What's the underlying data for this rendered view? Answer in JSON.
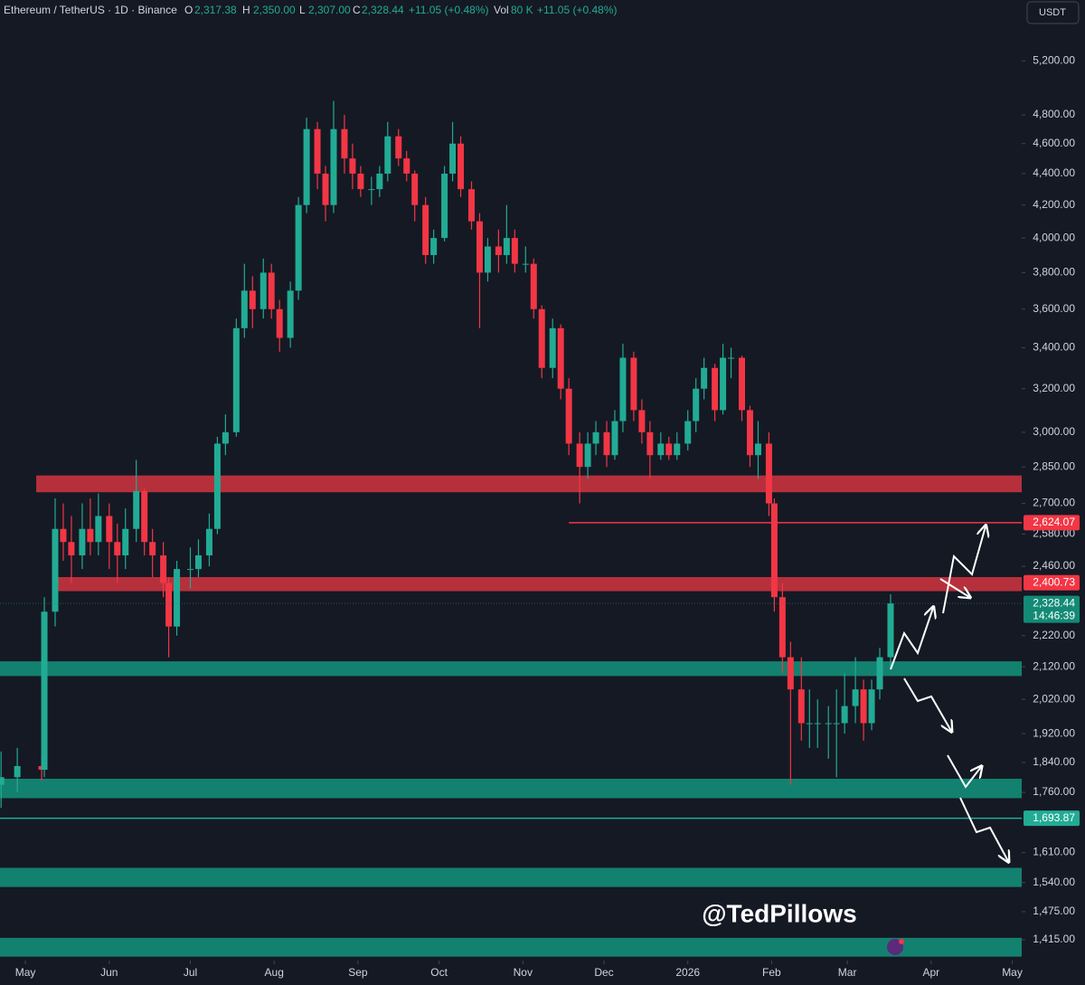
{
  "header": {
    "symbol": "Ethereum / TetherUS · 1D · Binance",
    "o_label": "O",
    "o": "2,317.38",
    "h_label": "H",
    "h": "2,350.00",
    "l_label": "L",
    "l": "2,307.00",
    "c_label": "C",
    "c": "2,328.44",
    "change": "+11.05 (+0.48%)",
    "vol_label": "Vol",
    "vol": "80 K",
    "vol_change": "+11.05 (+0.48%)",
    "currency": "USDT"
  },
  "watermark": "@TedPillows",
  "chart_data": {
    "type": "candlestick",
    "log_scale": true,
    "grid": false,
    "up_color": "#22ab94",
    "down_color": "#f23645",
    "xlim": [
      -9.4,
      368.5
    ],
    "xticks": [
      {
        "value": 0,
        "label": "May"
      },
      {
        "value": 31,
        "label": "Jun"
      },
      {
        "value": 61,
        "label": "Jul"
      },
      {
        "value": 92,
        "label": "Aug"
      },
      {
        "value": 123,
        "label": "Sep"
      },
      {
        "value": 153,
        "label": "Oct"
      },
      {
        "value": 184,
        "label": "Nov"
      },
      {
        "value": 214,
        "label": "Dec"
      },
      {
        "value": 245,
        "label": "2026"
      },
      {
        "value": 276,
        "label": "Feb"
      },
      {
        "value": 304,
        "label": "Mar"
      },
      {
        "value": 335,
        "label": "Apr"
      },
      {
        "value": 365,
        "label": "May"
      }
    ],
    "ylim": [
      1372,
      5690
    ],
    "yticks": [
      {
        "value": 5200,
        "label": "5,200.00"
      },
      {
        "value": 4800,
        "label": "4,800.00"
      },
      {
        "value": 4600,
        "label": "4,600.00"
      },
      {
        "value": 4400,
        "label": "4,400.00"
      },
      {
        "value": 4200,
        "label": "4,200.00"
      },
      {
        "value": 4000,
        "label": "4,000.00"
      },
      {
        "value": 3800,
        "label": "3,800.00"
      },
      {
        "value": 3600,
        "label": "3,600.00"
      },
      {
        "value": 3400,
        "label": "3,400.00"
      },
      {
        "value": 3200,
        "label": "3,200.00"
      },
      {
        "value": 3000,
        "label": "3,000.00"
      },
      {
        "value": 2850,
        "label": "2,850.00"
      },
      {
        "value": 2700,
        "label": "2,700.00"
      },
      {
        "value": 2580,
        "label": "2,580.00"
      },
      {
        "value": 2460,
        "label": "2,460.00"
      },
      {
        "value": 2220,
        "label": "2,220.00"
      },
      {
        "value": 2120,
        "label": "2,120.00"
      },
      {
        "value": 2020,
        "label": "2,020.00"
      },
      {
        "value": 1920,
        "label": "1,920.00"
      },
      {
        "value": 1840,
        "label": "1,840.00"
      },
      {
        "value": 1760,
        "label": "1,760.00"
      },
      {
        "value": 1610,
        "label": "1,610.00"
      },
      {
        "value": 1540,
        "label": "1,540.00"
      },
      {
        "value": 1475,
        "label": "1,475.00"
      },
      {
        "value": 1415,
        "label": "1,415.00"
      }
    ],
    "x": [
      -9,
      -3,
      6,
      7,
      11,
      14,
      17,
      21,
      24,
      27,
      31,
      34,
      37,
      41,
      44,
      47,
      51,
      53,
      56,
      61,
      64,
      68,
      71,
      74,
      78,
      81,
      84,
      88,
      91,
      94,
      98,
      101,
      104,
      108,
      111,
      114,
      118,
      121,
      124,
      128,
      131,
      134,
      138,
      141,
      144,
      148,
      151,
      155,
      158,
      161,
      165,
      168,
      171,
      175,
      178,
      181,
      185,
      188,
      191,
      195,
      198,
      201,
      205,
      208,
      211,
      215,
      218,
      221,
      225,
      228,
      231,
      235,
      238,
      241,
      245,
      248,
      251,
      255,
      258,
      261,
      265,
      268,
      271,
      275,
      277,
      280,
      283,
      287,
      290,
      293,
      297,
      300,
      303,
      307,
      310,
      313,
      316,
      320
    ],
    "ohlc": [
      [
        1780,
        1870,
        1720,
        1800
      ],
      [
        1800,
        1880,
        1760,
        1830
      ],
      [
        1830,
        1860,
        1790,
        1820
      ],
      [
        1820,
        2350,
        1800,
        2300
      ],
      [
        2300,
        2720,
        2250,
        2600
      ],
      [
        2600,
        2700,
        2480,
        2550
      ],
      [
        2550,
        2650,
        2400,
        2500
      ],
      [
        2500,
        2700,
        2450,
        2600
      ],
      [
        2600,
        2720,
        2500,
        2550
      ],
      [
        2550,
        2740,
        2500,
        2650
      ],
      [
        2650,
        2700,
        2450,
        2550
      ],
      [
        2550,
        2620,
        2400,
        2500
      ],
      [
        2500,
        2680,
        2450,
        2600
      ],
      [
        2600,
        2880,
        2550,
        2750
      ],
      [
        2750,
        2760,
        2500,
        2550
      ],
      [
        2550,
        2600,
        2420,
        2500
      ],
      [
        2500,
        2550,
        2350,
        2400
      ],
      [
        2400,
        2420,
        2150,
        2250
      ],
      [
        2250,
        2480,
        2220,
        2450
      ],
      [
        2450,
        2530,
        2380,
        2450
      ],
      [
        2450,
        2560,
        2420,
        2500
      ],
      [
        2500,
        2660,
        2460,
        2600
      ],
      [
        2600,
        2980,
        2580,
        2950
      ],
      [
        2950,
        3080,
        2900,
        3000
      ],
      [
        3000,
        3550,
        2980,
        3500
      ],
      [
        3500,
        3850,
        3450,
        3700
      ],
      [
        3700,
        3780,
        3500,
        3600
      ],
      [
        3600,
        3880,
        3550,
        3800
      ],
      [
        3800,
        3850,
        3550,
        3600
      ],
      [
        3600,
        3650,
        3380,
        3450
      ],
      [
        3450,
        3750,
        3400,
        3700
      ],
      [
        3700,
        4250,
        3650,
        4200
      ],
      [
        4200,
        4780,
        4150,
        4700
      ],
      [
        4700,
        4750,
        4300,
        4400
      ],
      [
        4400,
        4450,
        4100,
        4200
      ],
      [
        4200,
        4900,
        4150,
        4700
      ],
      [
        4700,
        4800,
        4400,
        4500
      ],
      [
        4500,
        4600,
        4300,
        4400
      ],
      [
        4400,
        4450,
        4250,
        4300
      ],
      [
        4300,
        4380,
        4200,
        4300
      ],
      [
        4300,
        4450,
        4250,
        4400
      ],
      [
        4400,
        4750,
        4350,
        4650
      ],
      [
        4650,
        4700,
        4450,
        4500
      ],
      [
        4500,
        4550,
        4350,
        4400
      ],
      [
        4400,
        4420,
        4100,
        4200
      ],
      [
        4200,
        4250,
        3850,
        3900
      ],
      [
        3900,
        4050,
        3850,
        4000
      ],
      [
        4000,
        4450,
        3980,
        4400
      ],
      [
        4400,
        4750,
        4350,
        4600
      ],
      [
        4600,
        4650,
        4250,
        4300
      ],
      [
        4300,
        4350,
        4050,
        4100
      ],
      [
        4100,
        4150,
        3500,
        3800
      ],
      [
        3800,
        4000,
        3750,
        3950
      ],
      [
        3950,
        4050,
        3800,
        3900
      ],
      [
        3900,
        4200,
        3850,
        4000
      ],
      [
        4000,
        4050,
        3800,
        3850
      ],
      [
        3850,
        3950,
        3800,
        3850
      ],
      [
        3850,
        3880,
        3550,
        3600
      ],
      [
        3600,
        3620,
        3250,
        3300
      ],
      [
        3300,
        3550,
        3250,
        3500
      ],
      [
        3500,
        3520,
        3150,
        3200
      ],
      [
        3200,
        3250,
        2900,
        2950
      ],
      [
        2950,
        3000,
        2700,
        2850
      ],
      [
        2850,
        3000,
        2800,
        2950
      ],
      [
        2950,
        3050,
        2900,
        3000
      ],
      [
        3000,
        3050,
        2850,
        2900
      ],
      [
        2900,
        3100,
        2880,
        3050
      ],
      [
        3050,
        3420,
        3000,
        3350
      ],
      [
        3350,
        3380,
        3050,
        3100
      ],
      [
        3100,
        3150,
        2950,
        3000
      ],
      [
        3000,
        3050,
        2800,
        2900
      ],
      [
        2900,
        3000,
        2880,
        2950
      ],
      [
        2950,
        2980,
        2880,
        2900
      ],
      [
        2900,
        3000,
        2880,
        2950
      ],
      [
        2950,
        3100,
        2920,
        3050
      ],
      [
        3050,
        3250,
        3000,
        3200
      ],
      [
        3200,
        3350,
        3150,
        3300
      ],
      [
        3300,
        3320,
        3050,
        3100
      ],
      [
        3100,
        3420,
        3080,
        3350
      ],
      [
        3350,
        3400,
        3250,
        3350
      ],
      [
        3350,
        3360,
        3050,
        3100
      ],
      [
        3100,
        3120,
        2850,
        2900
      ],
      [
        2900,
        3050,
        2800,
        2950
      ],
      [
        2950,
        3000,
        2650,
        2700
      ],
      [
        2700,
        2720,
        2300,
        2350
      ],
      [
        2350,
        2400,
        2100,
        2150
      ],
      [
        2150,
        2200,
        1780,
        2050
      ],
      [
        2050,
        2150,
        1900,
        1950
      ],
      [
        1950,
        2050,
        1880,
        1950
      ],
      [
        1950,
        2020,
        1880,
        1950
      ],
      [
        1950,
        2000,
        1850,
        1950
      ],
      [
        1950,
        2050,
        1800,
        1950
      ],
      [
        1950,
        2100,
        1920,
        2000
      ],
      [
        2000,
        2150,
        1950,
        2050
      ],
      [
        2050,
        2080,
        1900,
        1950
      ],
      [
        1950,
        2080,
        1930,
        2050
      ],
      [
        2050,
        2180,
        2020,
        2150
      ],
      [
        2150,
        2360,
        2120,
        2328.44
      ]
    ],
    "zones": [
      {
        "low": 2745,
        "high": 2814,
        "from": 4,
        "color": "#c4323f"
      },
      {
        "low": 2371,
        "high": 2421,
        "from": 10,
        "color": "#c4323f"
      },
      {
        "low": 2091,
        "high": 2137,
        "color": "#138a76"
      },
      {
        "low": 1745,
        "high": 1796,
        "color": "#138a76"
      },
      {
        "low": 1530,
        "high": 1574,
        "color": "#138a76"
      },
      {
        "low": 1380,
        "high": 1419,
        "color": "#138a76"
      }
    ],
    "levels": [
      {
        "value": 2624.07,
        "label": "2,624.07",
        "from": 201,
        "color": "#f23645",
        "line": true
      },
      {
        "value": 2400.73,
        "label": "2,400.73",
        "color": "#f23645",
        "line": false
      },
      {
        "value": 2328.44,
        "label": "2,328.44",
        "sub": "14:46:39",
        "color": "#138a76",
        "line": "dotted"
      },
      {
        "value": 1693.87,
        "label": "1,693.87",
        "color": "#22ab94",
        "line": true
      }
    ]
  }
}
